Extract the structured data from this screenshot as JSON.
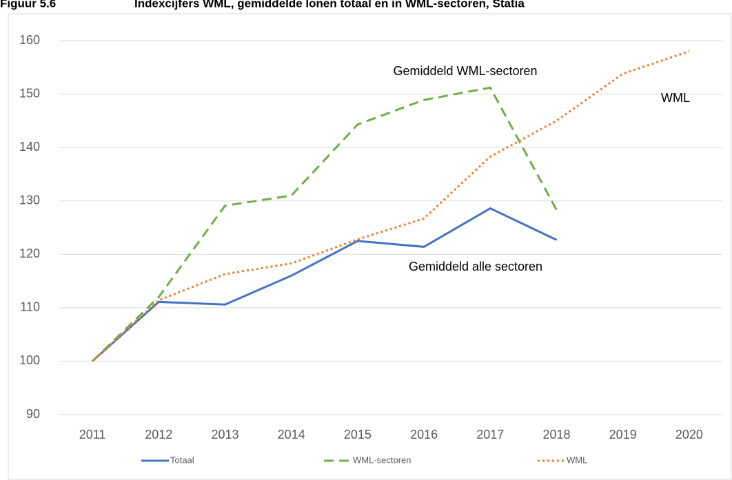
{
  "chart_data": {
    "type": "line",
    "title": "Figuur 5.6",
    "subtitle": "Indexcijfers WML, gemiddelde lonen totaal en in WML-sectoren, Statia",
    "categories": [
      "2011",
      "2012",
      "2013",
      "2014",
      "2015",
      "2016",
      "2017",
      "2018",
      "2019",
      "2020"
    ],
    "series": [
      {
        "name": "Totaal",
        "color": "#4472c4",
        "dash": "solid",
        "values": [
          100,
          111.1,
          110.6,
          116,
          122.5,
          121.4,
          128.6,
          122.7,
          null,
          null
        ]
      },
      {
        "name": "WML-sectoren",
        "color": "#70ad47",
        "dash": "dashed",
        "values": [
          100,
          112,
          129.1,
          131,
          144.3,
          148.9,
          151.2,
          128.3,
          null,
          null
        ]
      },
      {
        "name": "WML",
        "color": "#ed7d31",
        "dash": "dotted",
        "values": [
          100,
          111.4,
          116.3,
          118.3,
          122.8,
          126.7,
          138.3,
          145,
          153.8,
          158
        ]
      }
    ],
    "annotations": [
      "Gemiddeld WML-sectoren",
      "WML",
      "Gemiddeld alle sectoren"
    ],
    "ylim": [
      90,
      160
    ],
    "yticks": [
      90,
      100,
      110,
      120,
      130,
      140,
      150,
      160
    ],
    "grid": true,
    "legend": "bottom"
  }
}
